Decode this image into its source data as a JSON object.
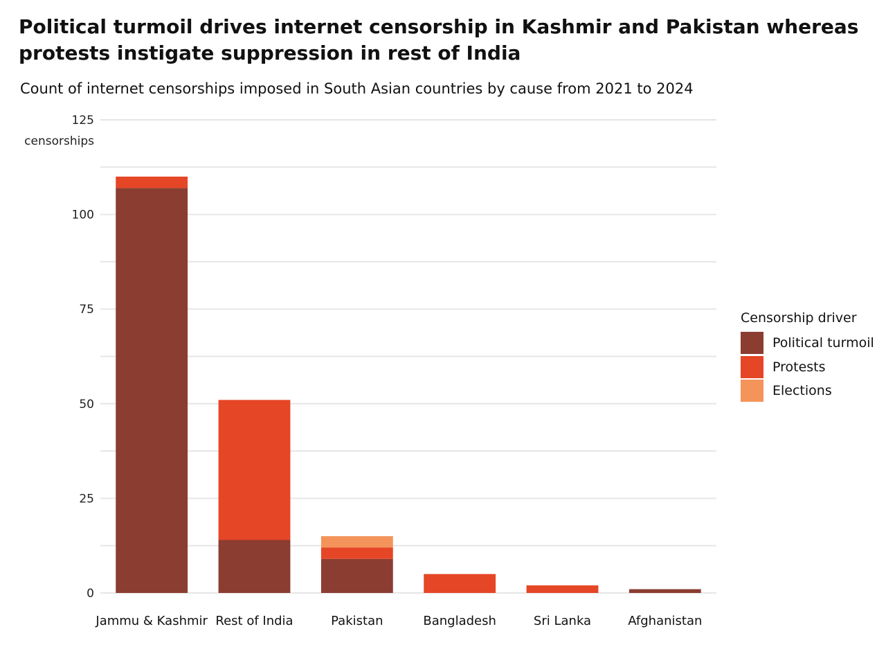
{
  "title": "Political turmoil drives internet censorship in Kashmir and Pakistan whereas protests instigate suppression in rest of India",
  "subtitle": "Count of internet censorships imposed in South Asian countries by cause from 2021 to 2024",
  "chart_data": {
    "type": "bar",
    "stacked": true,
    "title": "Political turmoil drives internet censorship in Kashmir and Pakistan whereas protests instigate suppression in rest of India",
    "subtitle": "Count of internet censorships imposed in South Asian countries by cause from 2021 to 2024",
    "xlabel": "",
    "ylabel": "censorships",
    "ylim": [
      0,
      125
    ],
    "yticks": [
      0,
      25,
      50,
      75,
      100,
      125
    ],
    "ytick_labels": [
      "0",
      "25",
      "50",
      "75",
      "100",
      "125"
    ],
    "grid": true,
    "legend_title": "Censorship driver",
    "legend_position": "right",
    "categories": [
      "Jammu & Kashmir",
      "Rest of India",
      "Pakistan",
      "Bangladesh",
      "Sri Lanka",
      "Afghanistan"
    ],
    "series": [
      {
        "name": "Political turmoil",
        "color": "#8b3d31",
        "values": [
          107,
          14,
          9,
          0,
          0,
          1
        ]
      },
      {
        "name": "Protests",
        "color": "#e54626",
        "values": [
          3,
          37,
          3,
          5,
          2,
          0
        ]
      },
      {
        "name": "Elections",
        "color": "#f4935a",
        "values": [
          0,
          0,
          3,
          0,
          0,
          0
        ]
      }
    ]
  }
}
